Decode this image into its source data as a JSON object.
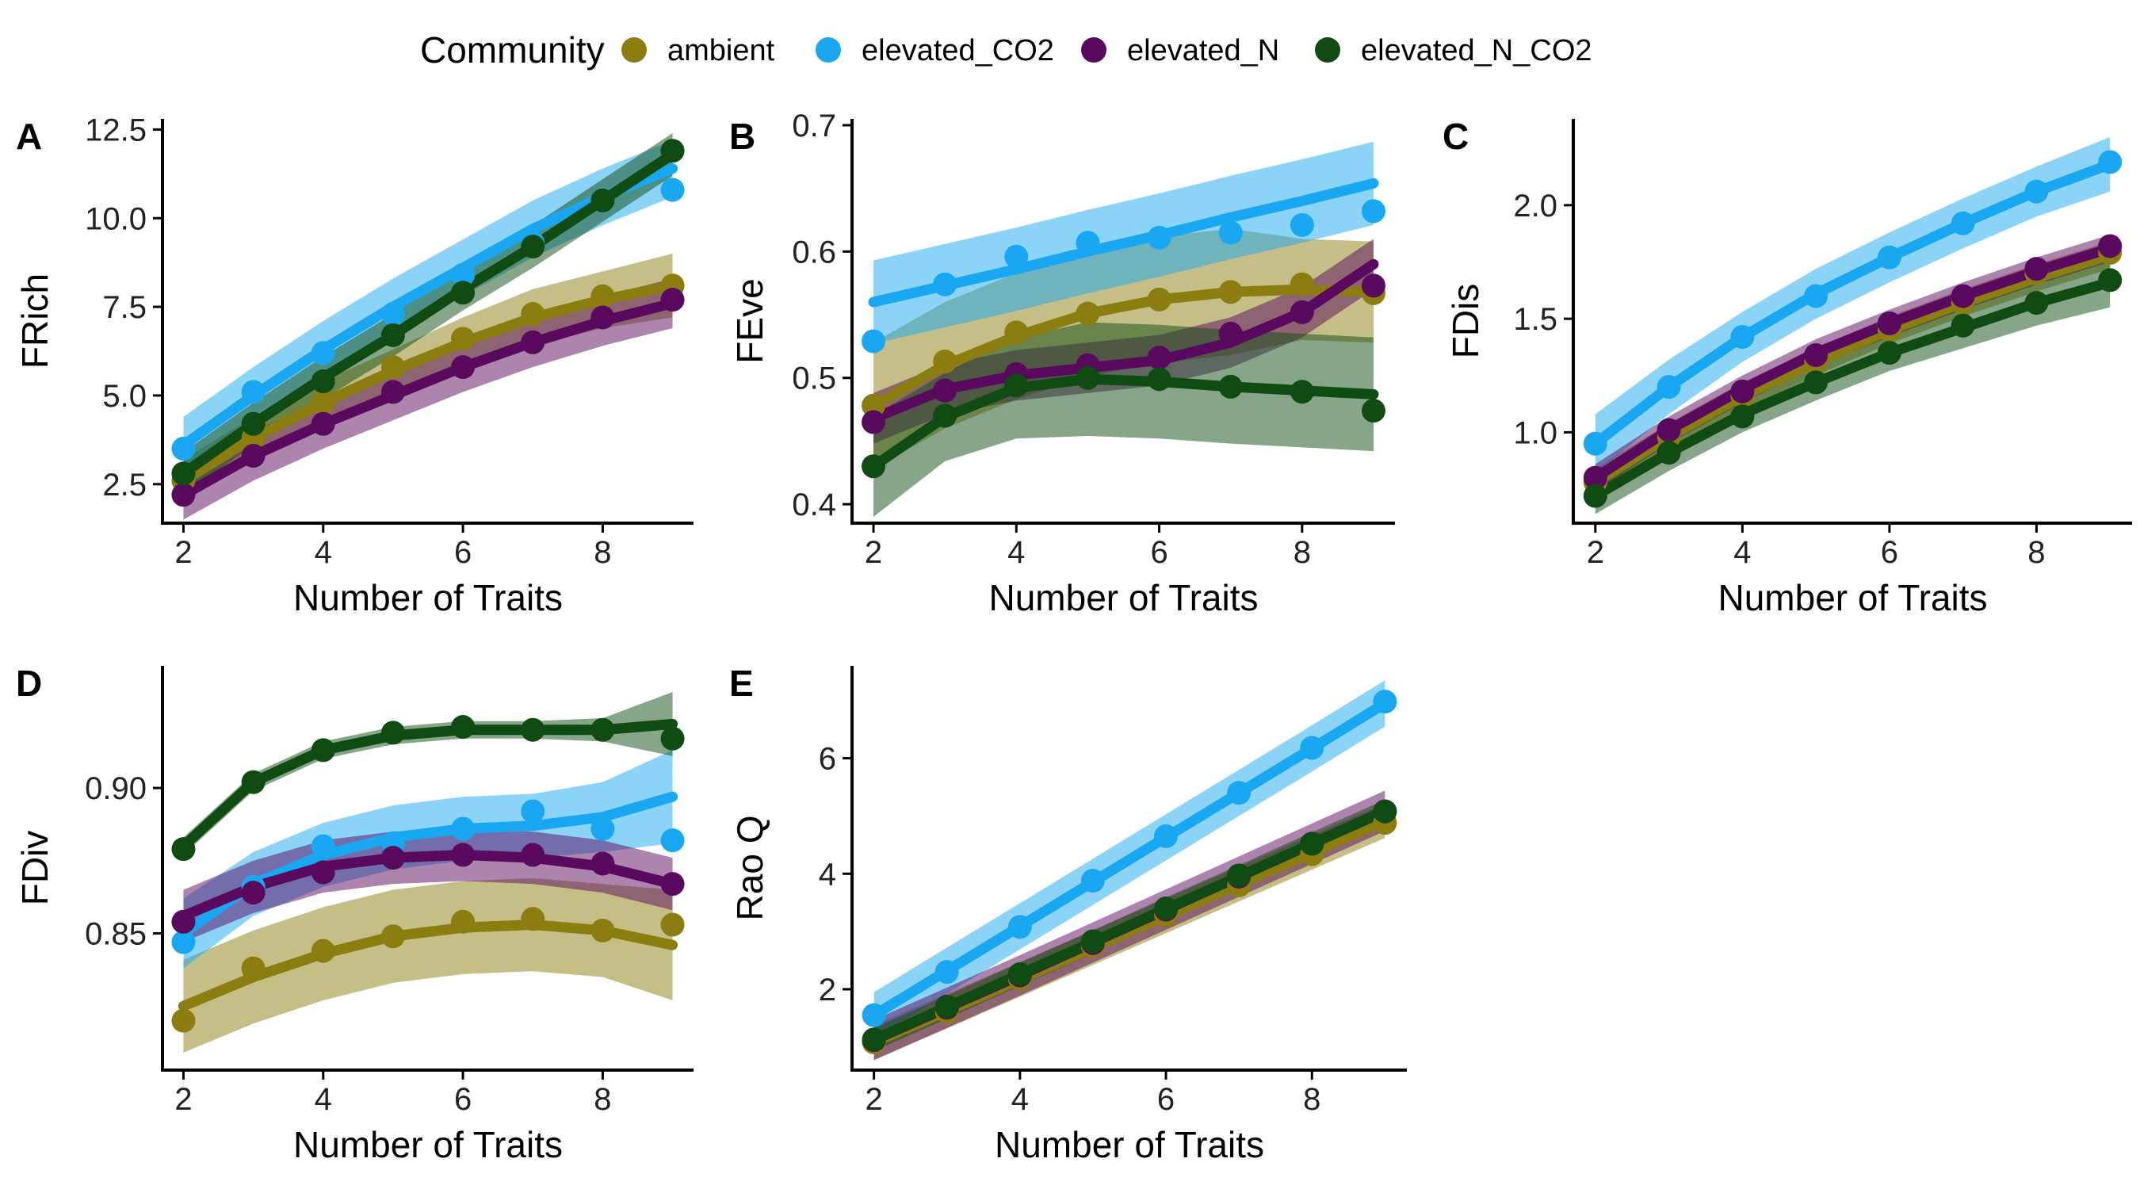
{
  "legend": {
    "title": "Community",
    "entries": [
      {
        "name": "ambient",
        "color": "#8b7d0f"
      },
      {
        "name": "elevated_CO2",
        "color": "#1aa7f2"
      },
      {
        "name": "elevated_N",
        "color": "#5a0a5e"
      },
      {
        "name": "elevated_N_CO2",
        "color": "#0f4b12"
      }
    ]
  },
  "chart_data": [
    {
      "panel": "A",
      "type": "line",
      "xlabel": "Number of Traits",
      "ylabel": "FRich",
      "xlim": [
        1.7,
        9.3
      ],
      "ylim": [
        1.4,
        12.8
      ],
      "xticks": [
        2,
        4,
        6,
        8
      ],
      "yticks": [
        2.5,
        5.0,
        7.5,
        10.0,
        12.5
      ],
      "ytick_labels": [
        "2.5",
        "5.0",
        "7.5",
        "10.0",
        "12.5"
      ],
      "x": [
        2,
        3,
        4,
        5,
        6,
        7,
        8,
        9
      ],
      "series": [
        {
          "name": "ambient",
          "points": [
            2.6,
            3.8,
            4.8,
            5.8,
            6.6,
            7.3,
            7.8,
            8.1
          ],
          "fit": [
            2.6,
            3.8,
            4.8,
            5.7,
            6.5,
            7.2,
            7.7,
            8.1
          ],
          "band": [
            0.6,
            0.6,
            0.6,
            0.6,
            0.7,
            0.8,
            0.8,
            0.9
          ]
        },
        {
          "name": "elevated_CO2",
          "points": [
            3.5,
            5.1,
            6.2,
            7.3,
            8.4,
            9.3,
            10.5,
            10.8
          ],
          "fit": [
            3.6,
            5.0,
            6.3,
            7.5,
            8.6,
            9.7,
            10.6,
            11.4
          ],
          "band": [
            0.8,
            0.8,
            0.8,
            0.8,
            0.8,
            0.8,
            0.8,
            0.8
          ]
        },
        {
          "name": "elevated_N",
          "points": [
            2.2,
            3.3,
            4.2,
            5.1,
            5.8,
            6.5,
            7.2,
            7.7
          ],
          "fit": [
            2.2,
            3.3,
            4.2,
            5.0,
            5.8,
            6.5,
            7.1,
            7.6
          ],
          "band": [
            0.7,
            0.7,
            0.7,
            0.7,
            0.7,
            0.7,
            0.7,
            0.7
          ]
        },
        {
          "name": "elevated_N_CO2",
          "points": [
            2.8,
            4.2,
            5.4,
            6.7,
            7.9,
            9.2,
            10.5,
            11.9
          ],
          "fit": [
            2.8,
            4.2,
            5.5,
            6.7,
            8.0,
            9.2,
            10.5,
            11.8
          ],
          "band": [
            0.6,
            0.6,
            0.6,
            0.6,
            0.6,
            0.6,
            0.6,
            0.6
          ]
        }
      ]
    },
    {
      "panel": "B",
      "type": "line",
      "xlabel": "Number of Traits",
      "ylabel": "FEve",
      "xlim": [
        1.7,
        9.3
      ],
      "ylim": [
        0.385,
        0.705
      ],
      "xticks": [
        2,
        4,
        6,
        8
      ],
      "yticks": [
        0.4,
        0.5,
        0.6,
        0.7
      ],
      "ytick_labels": [
        "0.4",
        "0.5",
        "0.6",
        "0.7"
      ],
      "x": [
        2,
        3,
        4,
        5,
        6,
        7,
        8,
        9
      ],
      "series": [
        {
          "name": "ambient",
          "points": [
            0.478,
            0.513,
            0.536,
            0.551,
            0.562,
            0.568,
            0.574,
            0.567
          ],
          "fit": [
            0.478,
            0.51,
            0.533,
            0.551,
            0.562,
            0.568,
            0.57,
            0.568
          ],
          "band": [
            0.05,
            0.05,
            0.05,
            0.05,
            0.05,
            0.05,
            0.04,
            0.04
          ]
        },
        {
          "name": "elevated_CO2",
          "points": [
            0.529,
            0.574,
            0.596,
            0.607,
            0.611,
            0.615,
            0.621,
            0.632
          ],
          "fit": [
            0.56,
            0.573,
            0.586,
            0.6,
            0.613,
            0.627,
            0.64,
            0.654
          ],
          "band": [
            0.033,
            0.033,
            0.033,
            0.033,
            0.033,
            0.033,
            0.033,
            0.033
          ]
        },
        {
          "name": "elevated_N",
          "points": [
            0.465,
            0.49,
            0.503,
            0.51,
            0.516,
            0.535,
            0.552,
            0.573
          ],
          "fit": [
            0.468,
            0.491,
            0.502,
            0.508,
            0.514,
            0.528,
            0.552,
            0.59
          ],
          "band": [
            0.02,
            0.02,
            0.02,
            0.02,
            0.02,
            0.02,
            0.02,
            0.02
          ]
        },
        {
          "name": "elevated_N_CO2",
          "points": [
            0.43,
            0.47,
            0.494,
            0.5,
            0.499,
            0.493,
            0.489,
            0.474
          ],
          "fit": [
            0.43,
            0.469,
            0.492,
            0.499,
            0.497,
            0.493,
            0.49,
            0.487
          ],
          "band": [
            0.04,
            0.035,
            0.04,
            0.045,
            0.045,
            0.045,
            0.045,
            0.045
          ]
        }
      ]
    },
    {
      "panel": "C",
      "type": "line",
      "xlabel": "Number of Traits",
      "ylabel": "FDis",
      "xlim": [
        1.7,
        9.3
      ],
      "ylim": [
        0.6,
        2.38
      ],
      "xticks": [
        2,
        4,
        6,
        8
      ],
      "yticks": [
        1.0,
        1.5,
        2.0
      ],
      "ytick_labels": [
        "1.0",
        "1.5",
        "2.0"
      ],
      "x": [
        2,
        3,
        4,
        5,
        6,
        7,
        8,
        9
      ],
      "series": [
        {
          "name": "ambient",
          "points": [
            0.78,
            0.98,
            1.16,
            1.31,
            1.45,
            1.57,
            1.7,
            1.79
          ],
          "fit": [
            0.78,
            0.98,
            1.16,
            1.31,
            1.45,
            1.57,
            1.68,
            1.78
          ],
          "band": [
            0.06,
            0.06,
            0.06,
            0.06,
            0.06,
            0.06,
            0.06,
            0.06
          ]
        },
        {
          "name": "elevated_CO2",
          "points": [
            0.95,
            1.2,
            1.42,
            1.6,
            1.77,
            1.92,
            2.06,
            2.19
          ],
          "fit": [
            0.95,
            1.2,
            1.42,
            1.61,
            1.77,
            1.92,
            2.06,
            2.18
          ],
          "band": [
            0.13,
            0.12,
            0.11,
            0.11,
            0.11,
            0.11,
            0.11,
            0.12
          ]
        },
        {
          "name": "elevated_N",
          "points": [
            0.8,
            1.01,
            1.18,
            1.34,
            1.48,
            1.6,
            1.72,
            1.82
          ],
          "fit": [
            0.8,
            1.01,
            1.19,
            1.35,
            1.48,
            1.6,
            1.71,
            1.81
          ],
          "band": [
            0.06,
            0.06,
            0.06,
            0.06,
            0.06,
            0.06,
            0.06,
            0.06
          ]
        },
        {
          "name": "elevated_N_CO2",
          "points": [
            0.72,
            0.91,
            1.07,
            1.22,
            1.35,
            1.47,
            1.57,
            1.67
          ],
          "fit": [
            0.72,
            0.91,
            1.08,
            1.22,
            1.35,
            1.46,
            1.57,
            1.66
          ],
          "band": [
            0.08,
            0.08,
            0.08,
            0.08,
            0.08,
            0.09,
            0.1,
            0.11
          ]
        }
      ]
    },
    {
      "panel": "D",
      "type": "line",
      "xlabel": "Number of Traits",
      "ylabel": "FDiv",
      "xlim": [
        1.7,
        9.3
      ],
      "ylim": [
        0.803,
        0.942
      ],
      "xticks": [
        2,
        4,
        6,
        8
      ],
      "yticks": [
        0.85,
        0.9
      ],
      "ytick_labels": [
        "0.85",
        "0.90"
      ],
      "x": [
        2,
        3,
        4,
        5,
        6,
        7,
        8,
        9
      ],
      "series": [
        {
          "name": "ambient",
          "points": [
            0.82,
            0.838,
            0.844,
            0.849,
            0.854,
            0.855,
            0.851,
            0.853
          ],
          "fit": [
            0.825,
            0.835,
            0.843,
            0.849,
            0.852,
            0.853,
            0.851,
            0.846
          ],
          "band": [
            0.016,
            0.016,
            0.016,
            0.016,
            0.016,
            0.016,
            0.016,
            0.019
          ]
        },
        {
          "name": "elevated_CO2",
          "points": [
            0.847,
            0.866,
            0.88,
            0.881,
            0.886,
            0.892,
            0.886,
            0.882
          ],
          "fit": [
            0.85,
            0.867,
            0.877,
            0.883,
            0.886,
            0.887,
            0.89,
            0.897
          ],
          "band": [
            0.012,
            0.011,
            0.011,
            0.011,
            0.011,
            0.011,
            0.012,
            0.016
          ]
        },
        {
          "name": "elevated_N",
          "points": [
            0.854,
            0.864,
            0.871,
            0.876,
            0.877,
            0.877,
            0.874,
            0.867
          ],
          "fit": [
            0.856,
            0.866,
            0.873,
            0.876,
            0.877,
            0.876,
            0.873,
            0.867
          ],
          "band": [
            0.009,
            0.009,
            0.009,
            0.009,
            0.009,
            0.009,
            0.009,
            0.009
          ]
        },
        {
          "name": "elevated_N_CO2",
          "points": [
            0.879,
            0.902,
            0.913,
            0.919,
            0.921,
            0.92,
            0.92,
            0.917
          ],
          "fit": [
            0.88,
            0.902,
            0.913,
            0.918,
            0.92,
            0.92,
            0.92,
            0.922
          ],
          "band": [
            0.003,
            0.003,
            0.003,
            0.003,
            0.003,
            0.003,
            0.004,
            0.011
          ]
        }
      ]
    },
    {
      "panel": "E",
      "type": "line",
      "xlabel": "Number of Traits",
      "ylabel": "Rao Q",
      "xlim": [
        1.7,
        9.3
      ],
      "ylim": [
        0.6,
        7.6
      ],
      "xticks": [
        2,
        4,
        6,
        8
      ],
      "yticks": [
        2,
        4,
        6
      ],
      "ytick_labels": [
        "2",
        "4",
        "6"
      ],
      "x": [
        2,
        3,
        4,
        5,
        6,
        7,
        8,
        9
      ],
      "series": [
        {
          "name": "ambient",
          "points": [
            1.08,
            1.61,
            2.18,
            2.75,
            3.29,
            3.8,
            4.34,
            4.88
          ],
          "fit": [
            1.08,
            1.62,
            2.17,
            2.72,
            3.27,
            3.82,
            4.37,
            4.92
          ],
          "band": [
            0.3,
            0.3,
            0.3,
            0.3,
            0.3,
            0.3,
            0.3,
            0.3
          ]
        },
        {
          "name": "elevated_CO2",
          "points": [
            1.55,
            2.3,
            3.08,
            3.88,
            4.65,
            5.4,
            6.18,
            6.98
          ],
          "fit": [
            1.55,
            2.32,
            3.09,
            3.86,
            4.63,
            5.4,
            6.17,
            6.95
          ],
          "band": [
            0.4,
            0.4,
            0.4,
            0.4,
            0.4,
            0.4,
            0.4,
            0.4
          ]
        },
        {
          "name": "elevated_N",
          "points": [
            1.12,
            1.68,
            2.24,
            2.8,
            3.38,
            3.95,
            4.52,
            5.08
          ],
          "fit": [
            1.12,
            1.68,
            2.24,
            2.81,
            3.38,
            3.95,
            4.52,
            5.09
          ],
          "band": [
            0.35,
            0.35,
            0.35,
            0.35,
            0.35,
            0.35,
            0.35,
            0.35
          ]
        },
        {
          "name": "elevated_N_CO2",
          "points": [
            1.13,
            1.7,
            2.26,
            2.83,
            3.4,
            3.97,
            4.52,
            5.08
          ],
          "fit": [
            1.13,
            1.69,
            2.26,
            2.82,
            3.39,
            3.95,
            4.52,
            5.08
          ],
          "band": [
            0.2,
            0.2,
            0.2,
            0.2,
            0.2,
            0.2,
            0.2,
            0.2
          ]
        }
      ]
    }
  ]
}
